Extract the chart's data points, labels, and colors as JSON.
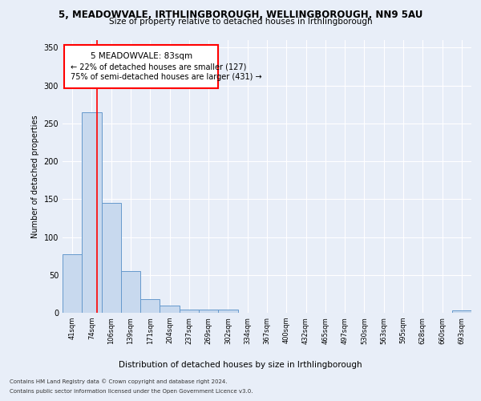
{
  "title_line1": "5, MEADOWVALE, IRTHLINGBOROUGH, WELLINGBOROUGH, NN9 5AU",
  "title_line2": "Size of property relative to detached houses in Irthlingborough",
  "xlabel": "Distribution of detached houses by size in Irthlingborough",
  "ylabel": "Number of detached properties",
  "categories": [
    "41sqm",
    "74sqm",
    "106sqm",
    "139sqm",
    "171sqm",
    "204sqm",
    "237sqm",
    "269sqm",
    "302sqm",
    "334sqm",
    "367sqm",
    "400sqm",
    "432sqm",
    "465sqm",
    "497sqm",
    "530sqm",
    "563sqm",
    "595sqm",
    "628sqm",
    "660sqm",
    "693sqm"
  ],
  "values": [
    77,
    265,
    145,
    55,
    18,
    10,
    4,
    4,
    4,
    0,
    0,
    0,
    0,
    0,
    0,
    0,
    0,
    0,
    0,
    0,
    3
  ],
  "bar_color": "#c8d9ee",
  "bar_edge_color": "#6699cc",
  "annotation_title": "5 MEADOWVALE: 83sqm",
  "annotation_line1": "← 22% of detached houses are smaller (127)",
  "annotation_line2": "75% of semi-detached houses are larger (431) →",
  "ylim": [
    0,
    360
  ],
  "yticks": [
    0,
    50,
    100,
    150,
    200,
    250,
    300,
    350
  ],
  "footer_line1": "Contains HM Land Registry data © Crown copyright and database right 2024.",
  "footer_line2": "Contains public sector information licensed under the Open Government Licence v3.0.",
  "bg_color": "#e8eef8",
  "plot_bg_color": "#e8eef8"
}
